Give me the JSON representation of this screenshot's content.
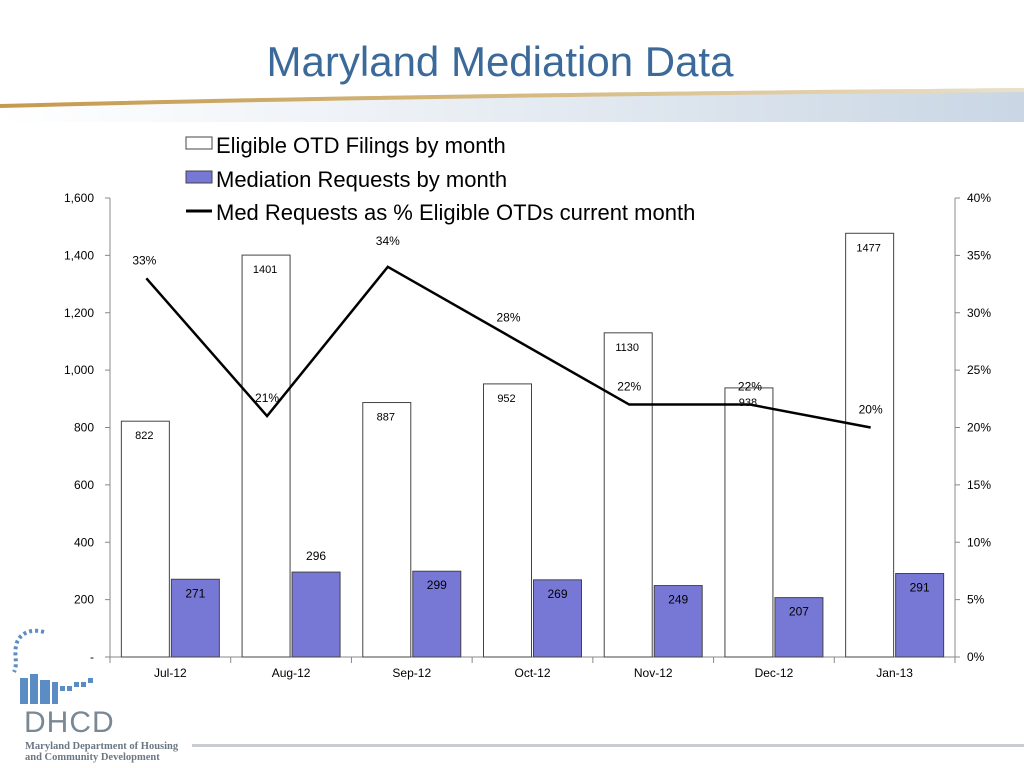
{
  "slide": {
    "title": "Maryland Mediation Data"
  },
  "logo": {
    "abbr": "DHCD",
    "line1": "Maryland Department of Housing",
    "line2": "and Community Development"
  },
  "colors": {
    "title": "#3B6A9A",
    "mediation_bar": "#7777D6",
    "eligible_bar": "#FFFFFF",
    "line": "#000000",
    "band": "#D9E3EE",
    "band_accent": "#C9A35A"
  },
  "chart_data": {
    "type": "bar",
    "categories": [
      "Jul-12",
      "Aug-12",
      "Sep-12",
      "Oct-12",
      "Nov-12",
      "Dec-12",
      "Jan-13"
    ],
    "series": [
      {
        "name": "Eligible OTD Filings by month",
        "type": "bar",
        "axis": "left",
        "values": [
          822,
          1401,
          887,
          952,
          1130,
          938,
          1477
        ]
      },
      {
        "name": "Mediation Requests by month",
        "type": "bar",
        "axis": "left",
        "values": [
          271,
          296,
          299,
          269,
          249,
          207,
          291
        ]
      },
      {
        "name": "Med Requests as % Eligible OTDs current month",
        "type": "line",
        "axis": "right",
        "values": [
          33,
          21,
          34,
          28,
          22,
          22,
          20
        ],
        "labels": [
          "33%",
          "21%",
          "34%",
          "28%",
          "22%",
          "22%",
          "20%"
        ]
      }
    ],
    "y_left": {
      "ylim": [
        0,
        1600
      ],
      "ticks": [
        0,
        200,
        400,
        600,
        800,
        1000,
        1200,
        1400,
        1600
      ],
      "tick_labels": [
        "-",
        "200",
        "400",
        "600",
        "800",
        "1,000",
        "1,200",
        "1,400",
        "1,600"
      ]
    },
    "y_right": {
      "ylim": [
        0,
        40
      ],
      "ticks": [
        0,
        5,
        10,
        15,
        20,
        25,
        30,
        35,
        40
      ],
      "tick_labels": [
        "0%",
        "5%",
        "10%",
        "15%",
        "20%",
        "25%",
        "30%",
        "35%",
        "40%"
      ]
    },
    "legend_placement": "top",
    "grid": false
  }
}
